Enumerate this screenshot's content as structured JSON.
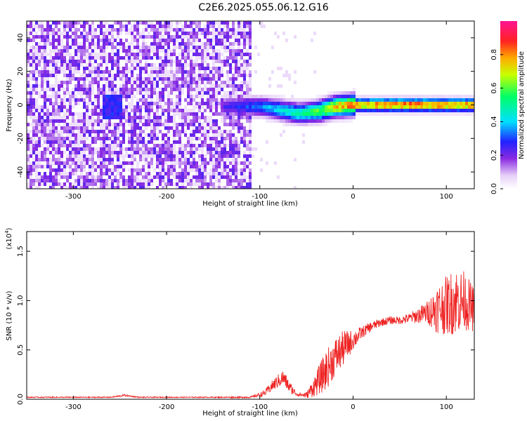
{
  "title": "C2E6.2025.055.06.12.G16",
  "colors": {
    "snr_line": "#ee2222",
    "axis": "#000000",
    "background": "#ffffff"
  },
  "chart_data": [
    {
      "type": "heatmap",
      "xlabel": "Height of straight line (km)",
      "ylabel": "Frequency (Hz)",
      "xlim": [
        -350,
        130
      ],
      "ylim": [
        -50,
        50
      ],
      "x_ticks": [
        -300,
        -200,
        -100,
        0,
        100
      ],
      "x_tick_labels": [
        "-300",
        "-200",
        "-100",
        "0",
        "100"
      ],
      "y_ticks": [
        -40,
        -20,
        0,
        20,
        40
      ],
      "y_tick_labels": [
        "-40",
        "-20",
        "0",
        "20",
        "40"
      ],
      "colorbar": {
        "label": "Normalized spectral amplitude",
        "range": [
          0,
          1
        ],
        "ticks": [
          0.0,
          0.2,
          0.4,
          0.6,
          0.8
        ],
        "tick_labels": [
          "0.0",
          "0.2",
          "0.4",
          "0.6",
          "0.8"
        ],
        "colormap": "rainbow (white-violet-blue-cyan-green-yellow-red-magenta)"
      },
      "signal_track": {
        "description": "narrow high-amplitude band near 0 Hz",
        "x": [
          -140,
          -100,
          -80,
          -60,
          -40,
          -20,
          0,
          40,
          80,
          130
        ],
        "freq_center": [
          0,
          0,
          -2,
          -4,
          -3,
          0,
          1,
          1,
          1,
          1
        ],
        "amplitude": [
          0.25,
          0.35,
          0.45,
          0.5,
          0.6,
          0.8,
          0.85,
          0.9,
          0.9,
          0.88
        ]
      },
      "noise_region": {
        "x_range": [
          -350,
          -110
        ],
        "freq_range": [
          -50,
          50
        ],
        "level": "low (0.1-0.25)"
      }
    },
    {
      "type": "line",
      "xlabel": "Height of straight line (km)",
      "ylabel": "SNR (10 * v/v)",
      "y_scale_label": "(x10",
      "y_scale_exponent": "4",
      "y_scale_close": ")",
      "xlim": [
        -350,
        130
      ],
      "ylim": [
        0,
        1.7
      ],
      "x_ticks": [
        -300,
        -200,
        -100,
        0,
        100
      ],
      "x_tick_labels": [
        "-300",
        "-200",
        "-100",
        "0",
        "100"
      ],
      "y_ticks": [
        0.0,
        0.5,
        1.0,
        1.5
      ],
      "y_tick_labels": [
        "0.0",
        "0.5",
        "1.0",
        "1.5"
      ],
      "series": [
        {
          "x": [
            -350,
            -300,
            -260,
            -245,
            -230,
            -200,
            -150,
            -110,
            -95,
            -85,
            -75,
            -68,
            -60,
            -50,
            -40,
            -30,
            -20,
            -10,
            0,
            10,
            20,
            30,
            40,
            50,
            60,
            70,
            80,
            90,
            100,
            110,
            120,
            130
          ],
          "y": [
            0.02,
            0.02,
            0.02,
            0.04,
            0.02,
            0.02,
            0.02,
            0.02,
            0.06,
            0.15,
            0.22,
            0.12,
            0.05,
            0.04,
            0.15,
            0.28,
            0.42,
            0.52,
            0.6,
            0.68,
            0.74,
            0.78,
            0.8,
            0.8,
            0.82,
            0.85,
            0.88,
            0.92,
            0.95,
            1.0,
            1.0,
            0.9
          ],
          "noise": [
            0.005,
            0.005,
            0.005,
            0.01,
            0.005,
            0.005,
            0.005,
            0.008,
            0.03,
            0.06,
            0.08,
            0.06,
            0.02,
            0.03,
            0.12,
            0.2,
            0.2,
            0.18,
            0.1,
            0.06,
            0.05,
            0.04,
            0.04,
            0.04,
            0.05,
            0.08,
            0.12,
            0.25,
            0.3,
            0.35,
            0.3,
            0.22
          ]
        }
      ]
    }
  ]
}
